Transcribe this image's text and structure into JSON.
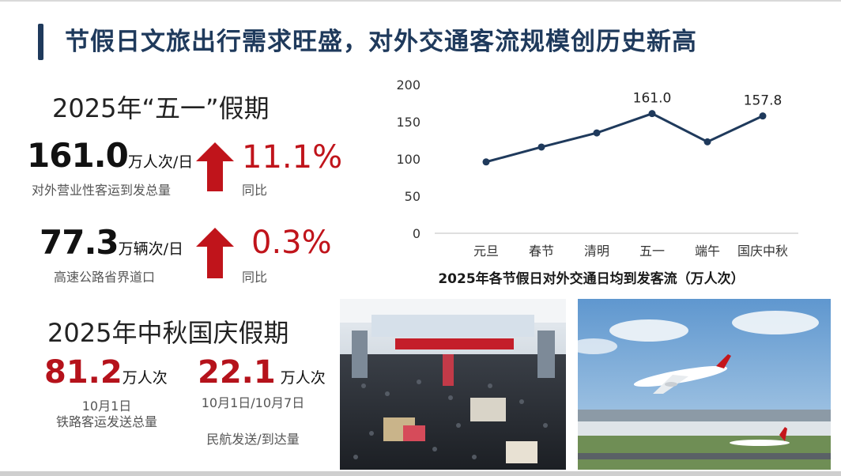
{
  "header": {
    "title": "节假日文旅出行需求旺盛，对外交通客流规模创历史新高"
  },
  "may_day": {
    "section_title": "2025年“五一”假期",
    "stat1": {
      "value": "161.0",
      "unit": "万人次/日",
      "label": "对外营业性客运到发总量",
      "change": "11.1%",
      "change_label": "同比"
    },
    "stat2": {
      "value": "77.3",
      "unit": "万辆次/日",
      "label": "高速公路省界道口",
      "change": "0.3%",
      "change_label": "同比"
    }
  },
  "mid_autumn": {
    "section_title": "2025年中秋国庆假期",
    "stat1": {
      "value": "81.2",
      "unit": "万人次",
      "date": "10月1日",
      "label": "铁路客运发送总量"
    },
    "stat2": {
      "value": "22.1",
      "unit": "万人次",
      "date": "10月1日/10月7日",
      "label": "民航发送/到达量"
    }
  },
  "colors": {
    "accent_red": "#c0141b",
    "title_blue": "#1f3a5c",
    "line": "#1f3a5c"
  },
  "icons": {
    "arrow": "arrow-up-icon"
  },
  "chart_data": {
    "type": "line",
    "title": "2025年各节假日对外交通日均到发客流（万人次）",
    "categories": [
      "元旦",
      "春节",
      "清明",
      "五一",
      "端午",
      "国庆中秋"
    ],
    "values": [
      96,
      116,
      135,
      161.0,
      123,
      157.8
    ],
    "data_labels": {
      "五一": "161.0",
      "国庆中秋": "157.8"
    },
    "ylim": [
      0,
      200
    ],
    "yticks": [
      "0",
      "50",
      "100",
      "150",
      "200"
    ],
    "grid": false,
    "xlabel": "",
    "ylabel": ""
  },
  "photos": {
    "station": "railway-station-hall-photo",
    "airport": "airplane-takeoff-photo"
  }
}
